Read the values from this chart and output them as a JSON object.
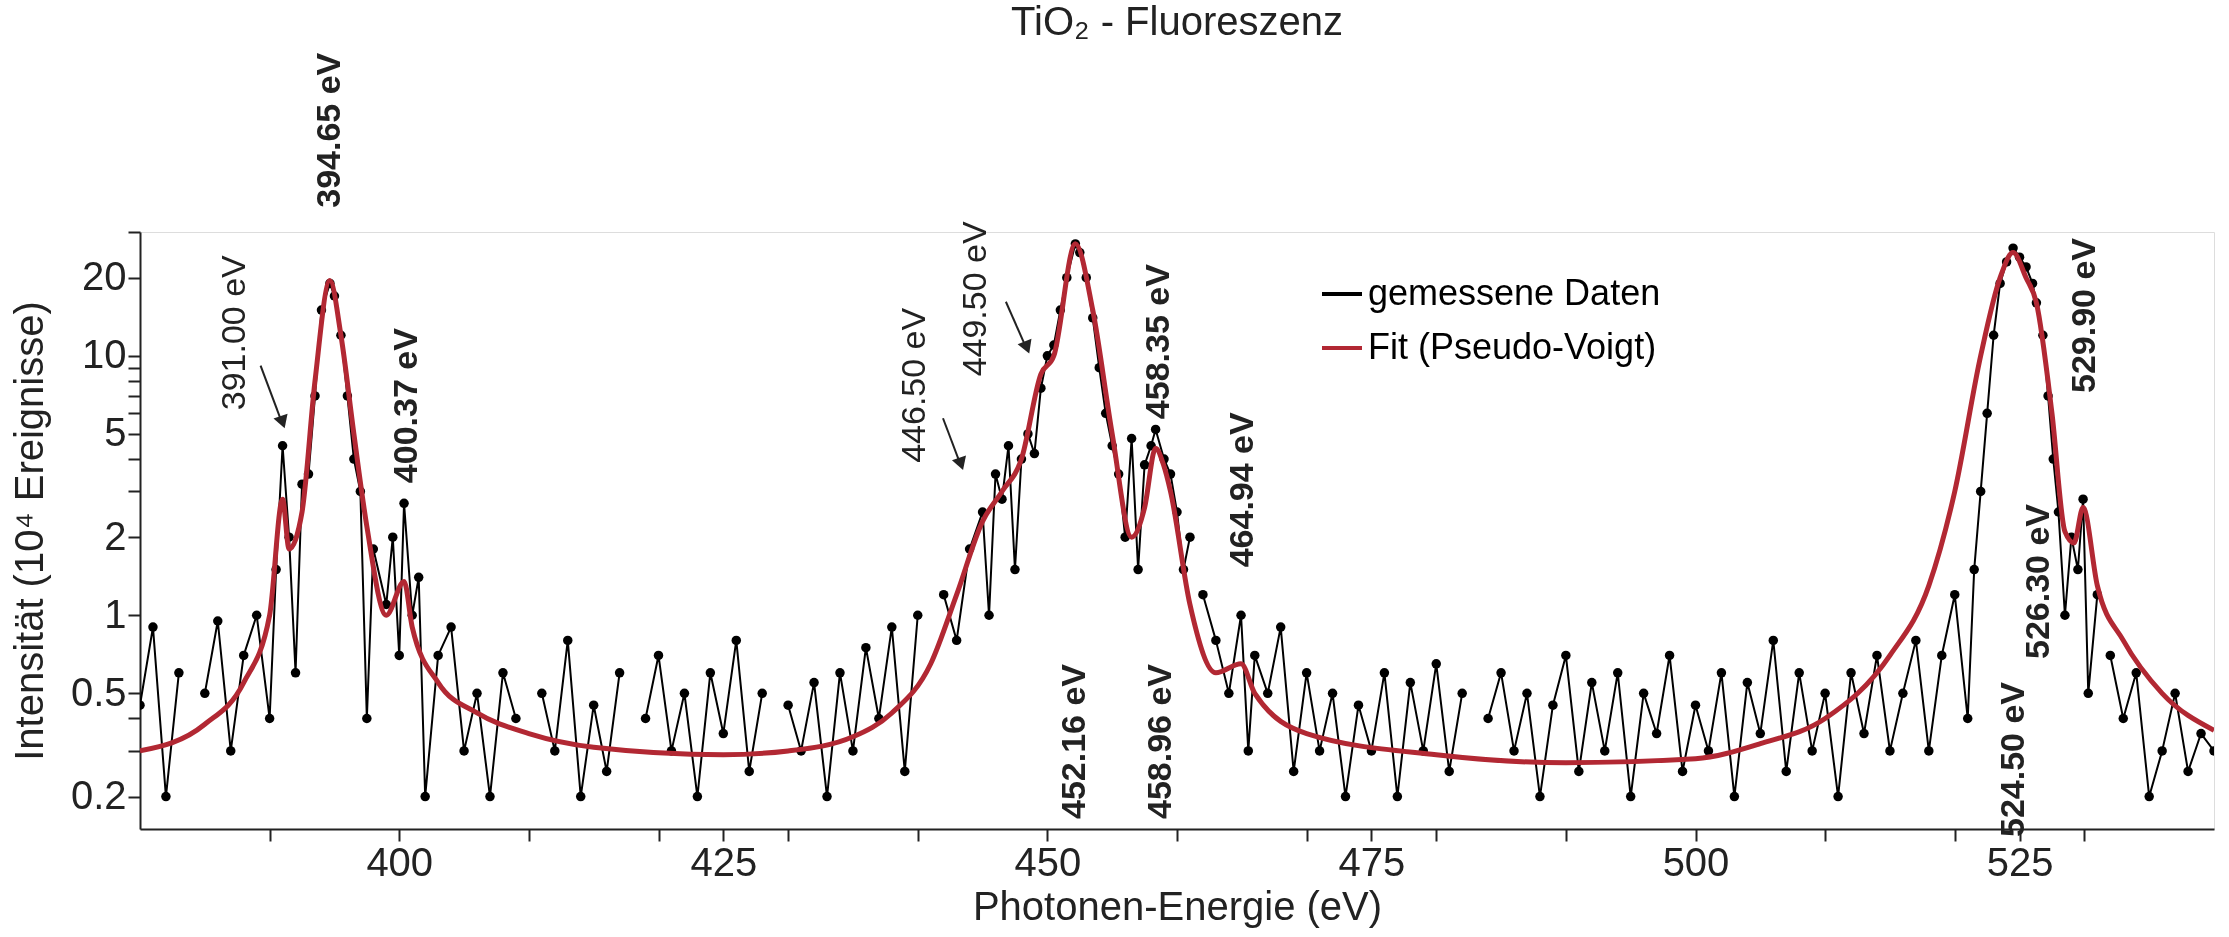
{
  "chart_data": {
    "type": "line",
    "title": "TiO₂ - Fluoreszenz",
    "xlabel": "Photonen-Energie (eV)",
    "ylabel": "Intensität (10⁴ Ereignisse)",
    "log": "y",
    "grid": false,
    "legend": "top right",
    "line_style": "solid",
    "xlim": [
      380,
      540
    ],
    "ylim": [
      0.15,
      30
    ],
    "xticks": [
      {
        "value": 390,
        "label": null
      },
      {
        "value": 400,
        "label": "400"
      },
      {
        "value": 410,
        "label": null
      },
      {
        "value": 420,
        "label": null
      },
      {
        "value": 425,
        "label": "425"
      },
      {
        "value": 430,
        "label": null
      },
      {
        "value": 440,
        "label": null
      },
      {
        "value": 450,
        "label": "450"
      },
      {
        "value": 460,
        "label": null
      },
      {
        "value": 470,
        "label": null
      },
      {
        "value": 475,
        "label": "475"
      },
      {
        "value": 480,
        "label": null
      },
      {
        "value": 490,
        "label": null
      },
      {
        "value": 500,
        "label": "500"
      },
      {
        "value": 510,
        "label": null
      },
      {
        "value": 520,
        "label": null
      },
      {
        "value": 525,
        "label": "525"
      },
      {
        "value": 530,
        "label": null
      }
    ],
    "yticks": [
      0.2,
      {
        "value": 0.3,
        "label": null
      },
      {
        "value": 0.4,
        "label": null
      },
      0.5,
      1,
      2,
      {
        "value": 3,
        "label": null
      },
      {
        "value": 4,
        "label": null
      },
      5,
      {
        "value": 6,
        "label": null
      },
      {
        "value": 7,
        "label": null
      },
      {
        "value": 8,
        "label": null
      },
      {
        "value": 9,
        "label": null
      },
      10,
      20,
      {
        "value": 30,
        "label": null
      }
    ],
    "series": [
      {
        "name": "gemessene Daten",
        "color": "#000000",
        "marker": "circle",
        "x": [
          380,
          381,
          382,
          383,
          384,
          385,
          386,
          387,
          388,
          389,
          390,
          390.5,
          391,
          391.5,
          392,
          392.5,
          393,
          393.5,
          394,
          394.65,
          395,
          395.5,
          396,
          396.5,
          397,
          397.5,
          398,
          399,
          399.5,
          400,
          400.37,
          401,
          401.5,
          402,
          403,
          404,
          405,
          406,
          407,
          408,
          409,
          410,
          411,
          412,
          413,
          414,
          415,
          416,
          417,
          418,
          419,
          420,
          421,
          422,
          423,
          424,
          425,
          426,
          427,
          428,
          429,
          430,
          431,
          432,
          433,
          434,
          435,
          436,
          437,
          438,
          439,
          440,
          441,
          442,
          443,
          444,
          445,
          445.5,
          446,
          446.5,
          447,
          447.5,
          448,
          448.5,
          449,
          449.5,
          450,
          450.5,
          451,
          451.5,
          452.16,
          452.5,
          453,
          453.5,
          454,
          454.5,
          455,
          455.5,
          456,
          456.5,
          457,
          457.5,
          458,
          458.35,
          459,
          459.5,
          460,
          460.5,
          461,
          461.5,
          462,
          463,
          464,
          464.94,
          465.5,
          466,
          467,
          468,
          469,
          470,
          471,
          472,
          473,
          474,
          475,
          476,
          477,
          478,
          479,
          480,
          481,
          482,
          483,
          484,
          485,
          486,
          487,
          488,
          489,
          490,
          491,
          492,
          493,
          494,
          495,
          496,
          497,
          498,
          499,
          500,
          501,
          502,
          503,
          504,
          505,
          506,
          507,
          508,
          509,
          510,
          511,
          512,
          513,
          514,
          515,
          516,
          517,
          518,
          519,
          520,
          521,
          521.5,
          522,
          522.5,
          523,
          523.5,
          524,
          524.5,
          525,
          525.5,
          526,
          526.3,
          526.8,
          527.2,
          527.6,
          528,
          528.5,
          529,
          529.5,
          529.9,
          530.3,
          531,
          531.5,
          532,
          533,
          534,
          535,
          536,
          537,
          538,
          539,
          540
        ],
        "values": [
          0.45,
          0.9,
          0.2,
          0.6,
          null,
          0.5,
          0.95,
          0.3,
          0.7,
          1.0,
          0.4,
          1.5,
          4.5,
          2.0,
          0.6,
          3.2,
          3.5,
          7,
          15,
          19,
          17,
          12,
          7,
          4,
          3,
          0.4,
          1.8,
          1.1,
          2.0,
          0.7,
          2.7,
          1.0,
          1.4,
          0.2,
          0.7,
          0.9,
          0.3,
          0.5,
          0.2,
          0.6,
          0.4,
          null,
          0.5,
          0.3,
          0.8,
          0.2,
          0.45,
          0.25,
          0.6,
          null,
          0.4,
          0.7,
          0.3,
          0.5,
          0.2,
          0.6,
          0.35,
          0.8,
          0.25,
          0.5,
          null,
          0.45,
          0.3,
          0.55,
          0.2,
          0.6,
          0.3,
          0.75,
          0.4,
          0.9,
          0.25,
          1.0,
          null,
          1.2,
          0.8,
          1.8,
          2.5,
          1.0,
          3.5,
          2.8,
          4.5,
          1.5,
          4.0,
          5.0,
          4.2,
          7.5,
          10,
          11,
          15,
          20,
          27,
          25,
          20,
          14,
          9,
          6,
          4.5,
          3.5,
          2.0,
          4.8,
          1.5,
          3.8,
          4.5,
          5.2,
          4.0,
          3.5,
          2.5,
          1.5,
          2.0,
          null,
          1.2,
          0.8,
          0.5,
          1.0,
          0.3,
          0.7,
          0.5,
          0.9,
          0.25,
          0.6,
          0.3,
          0.5,
          0.2,
          0.45,
          0.3,
          0.6,
          0.2,
          0.55,
          0.3,
          0.65,
          0.25,
          0.5,
          null,
          0.4,
          0.6,
          0.3,
          0.5,
          0.2,
          0.45,
          0.7,
          0.25,
          0.55,
          0.3,
          0.6,
          0.2,
          0.5,
          0.35,
          0.7,
          0.25,
          0.45,
          0.3,
          0.6,
          0.2,
          0.55,
          0.35,
          0.8,
          0.25,
          0.6,
          0.3,
          0.5,
          0.2,
          0.6,
          0.35,
          0.7,
          0.3,
          0.5,
          0.8,
          0.3,
          0.7,
          1.2,
          0.4,
          1.5,
          3,
          6,
          12,
          19,
          23,
          26,
          24,
          22,
          19,
          16,
          12,
          7,
          4,
          2.5,
          1.0,
          2.0,
          1.5,
          2.8,
          0.5,
          1.2,
          null,
          0.7,
          0.4,
          0.6,
          0.2,
          0.3,
          0.5,
          0.25,
          0.35,
          0.3
        ]
      },
      {
        "name": "Fit (Pseudo-Voigt)",
        "color": "#b22833",
        "marker": "none",
        "x": [
          380,
          385,
          388,
          390,
          391,
          391.5,
          392.5,
          393.5,
          394.65,
          395.5,
          396.5,
          397.5,
          399,
          400.37,
          401,
          403,
          406,
          410,
          415,
          425,
          430,
          435,
          438,
          441,
          443,
          445,
          446.5,
          448,
          449.5,
          450.5,
          452.16,
          453.5,
          455,
          456.5,
          457.5,
          458.35,
          458.96,
          459.5,
          461,
          463,
          464.94,
          466,
          470,
          480,
          490,
          500,
          505,
          510,
          515,
          518,
          520,
          522,
          523.5,
          524.5,
          525.5,
          526.3,
          527.5,
          528.5,
          529.2,
          529.9,
          531,
          533,
          536,
          540
        ],
        "values": [
          0.3,
          0.38,
          0.55,
          1.0,
          2.8,
          1.8,
          2.5,
          8,
          19.5,
          12,
          5,
          2.2,
          1.0,
          1.35,
          0.9,
          0.55,
          0.42,
          0.35,
          0.31,
          0.29,
          0.3,
          0.34,
          0.42,
          0.65,
          1.2,
          2.3,
          3.0,
          4.0,
          8.5,
          10,
          27,
          15,
          5,
          2.0,
          2.6,
          4.4,
          3.8,
          3.0,
          1.1,
          0.6,
          0.65,
          0.5,
          0.35,
          0.29,
          0.27,
          0.28,
          0.32,
          0.4,
          0.7,
          1.3,
          3,
          10,
          20,
          25,
          20,
          16,
          6,
          2.1,
          1.9,
          2.6,
          1.3,
          0.8,
          0.5,
          0.36
        ]
      }
    ],
    "annotations": [
      {
        "text": "391.00 eV",
        "x": 391,
        "y": 4.5
      },
      {
        "text": "394.65 eV",
        "x": 394.65,
        "y": 19.5
      },
      {
        "text": "400.37 eV",
        "x": 400.37,
        "y": 1.35
      },
      {
        "text": "446.50 eV",
        "x": 446.5,
        "y": 2.8
      },
      {
        "text": "449.50 eV",
        "x": 449.5,
        "y": 7.5
      },
      "452.16 eV",
      {
        "text": "458.35 eV",
        "x": 458.35,
        "y": 4.4
      },
      "458.96 eV",
      {
        "text": "464.94 eV",
        "x": 464.94,
        "y": 0.65
      },
      "524.50 eV",
      "526.30 eV",
      "529.90 eV"
    ]
  }
}
